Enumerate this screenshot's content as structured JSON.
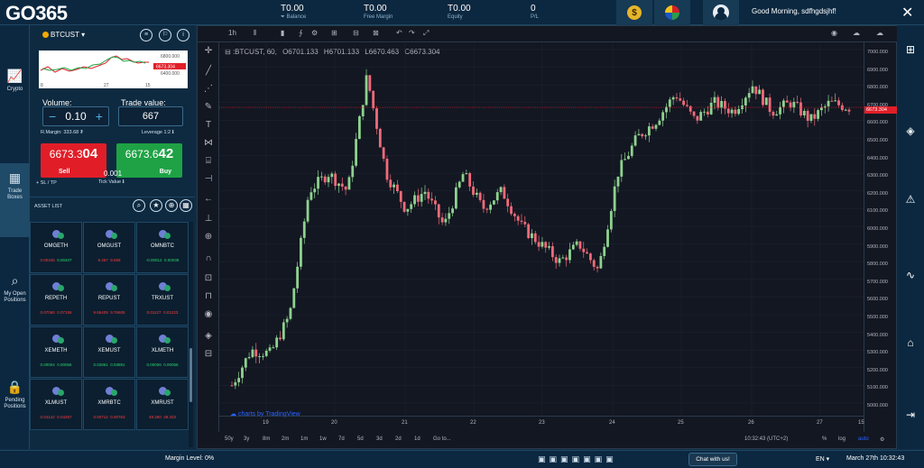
{
  "app": {
    "logo": "GO365"
  },
  "topbar": {
    "metrics": [
      {
        "value": "T0.00",
        "label": "⏷ Balance"
      },
      {
        "value": "T0.00",
        "label": "Free Margin"
      },
      {
        "value": "T0.00",
        "label": "Equity"
      },
      {
        "value": "0",
        "label": "P/L"
      }
    ],
    "coin_symbol": "$",
    "greeting": "Good Morning, sdfhgdsjhf!",
    "close": "✕"
  },
  "leftnav": [
    {
      "icon": "📈",
      "label": "Crypto"
    },
    {
      "icon": "▦",
      "label": "Trade Boxes"
    },
    {
      "icon": "⌕",
      "label": "My Open Positions"
    },
    {
      "icon": "🔒",
      "label": "Pending Positions"
    }
  ],
  "trade_panel": {
    "symbol": "BTCUST ▾",
    "mini_chart": {
      "prices": [
        "6800.000",
        "6673.304",
        "6400.000"
      ],
      "ticks": [
        "8",
        "27",
        "15"
      ]
    },
    "volume_label": "Volume:",
    "trade_value_label": "Trade value:",
    "volume": "0.10",
    "trade_value": "667",
    "margin_text": "R.Margin: 333.68 ₮",
    "leverage_text": "Leverage 1:2 ℹ",
    "sell": {
      "price_prefix": "6673.3",
      "price_big": "04",
      "label": "Sell"
    },
    "buy": {
      "price_prefix": "6673.6",
      "price_big": "42",
      "label": "Buy"
    },
    "sltp": "+ SL / TP",
    "tick_value": "0.001",
    "tick_value_label": "Tick Value ℹ"
  },
  "asset_list": {
    "title": "ASSET LIST",
    "items": [
      {
        "name": "OMGETH",
        "bid": "0.00346",
        "ask": "0.00407",
        "color": "red-green"
      },
      {
        "name": "OMGUST",
        "bid": "9.467",
        "ask": "9.568",
        "color": "red"
      },
      {
        "name": "OMNBTC",
        "bid": "-0.00012",
        "ask": "0.00038",
        "color": "green"
      },
      {
        "name": "REPETH",
        "bid": "0.07060",
        "ask": "0.07156",
        "color": "red"
      },
      {
        "name": "REPUST",
        "bid": "9.66409",
        "ask": "9.76605",
        "color": "red"
      },
      {
        "name": "TRXUST",
        "bid": "0.01127",
        "ask": "0.01223",
        "color": "red"
      },
      {
        "name": "XEMETH",
        "bid": "0.00004",
        "ask": "0.00056",
        "color": "green"
      },
      {
        "name": "XEMUST",
        "bid": "0.02861",
        "ask": "0.03881",
        "color": "green"
      },
      {
        "name": "XLMETH",
        "bid": "0.00006",
        "ask": "0.00056",
        "color": "green"
      },
      {
        "name": "XLMUST",
        "bid": "0.04142",
        "ask": "0.04257",
        "color": "red"
      },
      {
        "name": "XMRBTC",
        "bid": "0.00712",
        "ask": "0.00763",
        "color": "red"
      },
      {
        "name": "XMRUST",
        "bid": "49.280",
        "ask": "49.333",
        "color": "red"
      }
    ]
  },
  "chart": {
    "timeframe": "1h",
    "legend_symbol": ":BTCUST, 60,",
    "ohlc": {
      "o": "O6701.133",
      "h": "H6701.133",
      "l": "L6670.463",
      "c": "C6673.304"
    },
    "brand": "charts by TradingView",
    "current_price": "6673.304",
    "price_labels": [
      "7000.000",
      "6900.000",
      "6800.000",
      "6700.000",
      "6600.000",
      "6500.000",
      "6400.000",
      "6300.000",
      "6200.000",
      "6100.000",
      "6000.000",
      "5900.000",
      "5800.000",
      "5700.000",
      "5600.000",
      "5500.000",
      "5400.000",
      "5300.000",
      "5200.000",
      "5100.000",
      "5000.000"
    ],
    "time_labels": [
      "19",
      "20",
      "21",
      "22",
      "23",
      "24",
      "25",
      "26",
      "27",
      "15"
    ],
    "ranges": [
      "50y",
      "3y",
      "8m",
      "2m",
      "1m",
      "1w",
      "7d",
      "5d",
      "3d",
      "2d",
      "1d",
      "Go to..."
    ],
    "bottom_right": {
      "time": "10:32:43 (UTC+2)",
      "pct": "%",
      "log": "log",
      "auto": "auto"
    }
  },
  "chart_data": {
    "type": "line",
    "x": [
      "19",
      "20",
      "21",
      "22",
      "23",
      "24",
      "25",
      "26",
      "27"
    ],
    "series": [
      {
        "values": [
          5150,
          6150,
          6850,
          6250,
          5750,
          6550,
          6800,
          6650,
          6673.304
        ]
      }
    ],
    "ylim": [
      5000,
      7000
    ]
  },
  "footer": {
    "margin_level": "Margin Level: 0%",
    "chat": "Chat with us!",
    "lang": "EN ▾",
    "datetime": "March 27th 10:32:43"
  }
}
